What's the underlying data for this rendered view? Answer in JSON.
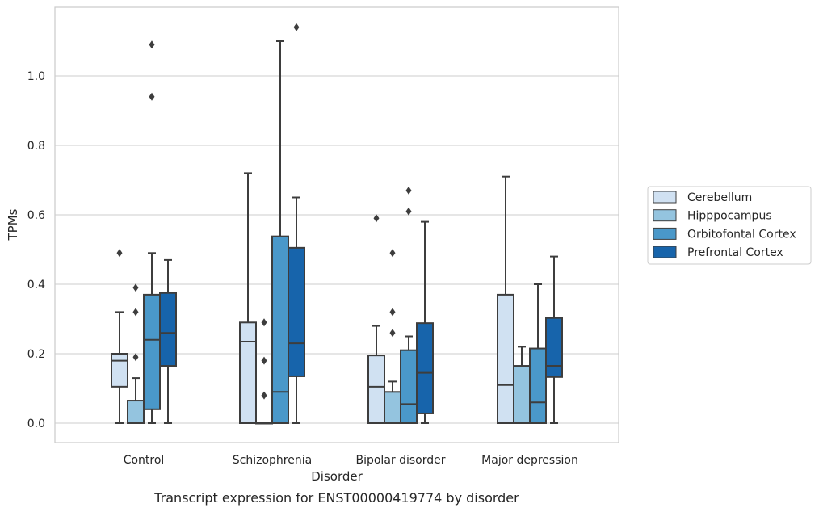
{
  "chart_data": {
    "type": "box",
    "caption": "Transcript expression for ENST00000419774 by disorder",
    "xlabel": "Disorder",
    "ylabel": "TPMs",
    "ylim": [
      -0.055,
      1.205
    ],
    "yticks": [
      "0.0",
      "0.2",
      "0.4",
      "0.6",
      "0.8",
      "1.0"
    ],
    "grid": "horizontal",
    "legend_position": "right",
    "categories": [
      "Control",
      "Schizophrenia",
      "Bipolar disorder",
      "Major depression"
    ],
    "series": [
      {
        "name": "Cerebellum",
        "color": "#d0e1f2",
        "boxes": [
          {
            "whislo": 0.0,
            "q1": 0.105,
            "med": 0.18,
            "q3": 0.2,
            "whishi": 0.32,
            "fliers": [
              0.49
            ]
          },
          {
            "whislo": 0.0,
            "q1": 0.0,
            "med": 0.235,
            "q3": 0.29,
            "whishi": 0.72,
            "fliers": []
          },
          {
            "whislo": 0.0,
            "q1": 0.0,
            "med": 0.105,
            "q3": 0.195,
            "whishi": 0.28,
            "fliers": [
              0.59
            ]
          },
          {
            "whislo": 0.0,
            "q1": 0.0,
            "med": 0.11,
            "q3": 0.37,
            "whishi": 0.71,
            "fliers": []
          }
        ]
      },
      {
        "name": "Hipppocampus",
        "color": "#94c4df",
        "boxes": [
          {
            "whislo": 0.0,
            "q1": 0.0,
            "med": 0.0,
            "q3": 0.065,
            "whishi": 0.13,
            "fliers": [
              0.19,
              0.32,
              0.39
            ]
          },
          {
            "whislo": 0.0,
            "q1": 0.0,
            "med": 0.0,
            "q3": 0.0,
            "whishi": 0.0,
            "fliers": [
              0.08,
              0.18,
              0.29
            ]
          },
          {
            "whislo": 0.0,
            "q1": 0.0,
            "med": 0.0,
            "q3": 0.09,
            "whishi": 0.12,
            "fliers": [
              0.26,
              0.32,
              0.49
            ]
          },
          {
            "whislo": 0.0,
            "q1": 0.0,
            "med": 0.0,
            "q3": 0.165,
            "whishi": 0.22,
            "fliers": []
          }
        ]
      },
      {
        "name": "Orbitofontal Cortex",
        "color": "#4a98c9",
        "boxes": [
          {
            "whislo": 0.0,
            "q1": 0.04,
            "med": 0.24,
            "q3": 0.37,
            "whishi": 0.49,
            "fliers": [
              0.94,
              1.09
            ]
          },
          {
            "whislo": 0.0,
            "q1": 0.0,
            "med": 0.09,
            "q3": 0.538,
            "whishi": 1.1,
            "fliers": []
          },
          {
            "whislo": 0.0,
            "q1": 0.0,
            "med": 0.055,
            "q3": 0.21,
            "whishi": 0.25,
            "fliers": [
              0.61,
              0.67
            ]
          },
          {
            "whislo": 0.0,
            "q1": 0.0,
            "med": 0.06,
            "q3": 0.215,
            "whishi": 0.4,
            "fliers": []
          }
        ]
      },
      {
        "name": "Prefrontal Cortex",
        "color": "#1764ab",
        "boxes": [
          {
            "whislo": 0.0,
            "q1": 0.165,
            "med": 0.26,
            "q3": 0.375,
            "whishi": 0.47,
            "fliers": []
          },
          {
            "whislo": 0.0,
            "q1": 0.135,
            "med": 0.23,
            "q3": 0.505,
            "whishi": 0.65,
            "fliers": [
              1.14
            ]
          },
          {
            "whislo": 0.0,
            "q1": 0.028,
            "med": 0.145,
            "q3": 0.288,
            "whishi": 0.58,
            "fliers": []
          },
          {
            "whislo": 0.0,
            "q1": 0.133,
            "med": 0.165,
            "q3": 0.303,
            "whishi": 0.48,
            "fliers": []
          }
        ]
      }
    ]
  }
}
